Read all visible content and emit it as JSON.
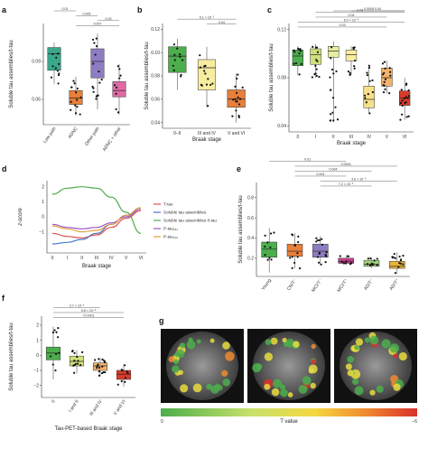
{
  "panel_labels": [
    "a",
    "b",
    "c",
    "d",
    "e",
    "f",
    "g"
  ],
  "colors": {
    "teal": "#3aa88a",
    "orange": "#e87f3a",
    "purple": "#8e7cc3",
    "pink": "#e06aa8",
    "green": "#4cae4c",
    "yellowgreen": "#cfe07a",
    "lightyellow": "#f7eda0",
    "paleorange": "#f3b36a",
    "red": "#d93a2b",
    "deeppink": "#cf3d8d",
    "gold": "#e9b53a",
    "lightgreen": "#9dd27a"
  },
  "chart_data": [
    {
      "panel": "a",
      "type": "box",
      "ylabel": "Soluble tau assemblies/t-tau",
      "ylim": [
        0.04,
        0.12
      ],
      "yticks": [
        "0.06",
        "0.09"
      ],
      "categories": [
        "Low path",
        "ADNC",
        "Other path",
        "ADNC + other"
      ],
      "boxes": [
        {
          "q1": 0.083,
          "med": 0.096,
          "q3": 0.101,
          "min": 0.072,
          "max": 0.105,
          "color": "#3aa88a"
        },
        {
          "q1": 0.056,
          "med": 0.061,
          "q3": 0.067,
          "min": 0.047,
          "max": 0.078,
          "color": "#e87f3a"
        },
        {
          "q1": 0.077,
          "med": 0.09,
          "q3": 0.1,
          "min": 0.052,
          "max": 0.112,
          "color": "#8e7cc3"
        },
        {
          "q1": 0.062,
          "med": 0.067,
          "q3": 0.074,
          "min": 0.048,
          "max": 0.088,
          "color": "#e06aa8"
        }
      ],
      "pvalues": [
        {
          "text": "0.01",
          "from": 0,
          "to": 1
        },
        {
          "text": "0.005",
          "from": 1,
          "to": 2
        },
        {
          "text": "0.03",
          "from": 2,
          "to": 3
        },
        {
          "text": "0.007",
          "from": 1,
          "to": 3
        }
      ]
    },
    {
      "panel": "b",
      "type": "box",
      "ylabel": "Soluble tau assemblies/t-tau",
      "xlabel": "Braak stage",
      "ylim": [
        0.035,
        0.125
      ],
      "yticks": [
        "0.04",
        "0.06",
        "0.08",
        "0.10",
        "0.12"
      ],
      "categories": [
        "0–II",
        "III and IV",
        "V and VI"
      ],
      "boxes": [
        {
          "q1": 0.083,
          "med": 0.097,
          "q3": 0.105,
          "min": 0.068,
          "max": 0.112,
          "color": "#4cae4c"
        },
        {
          "q1": 0.068,
          "med": 0.087,
          "q3": 0.094,
          "min": 0.053,
          "max": 0.105,
          "color": "#f7eda0"
        },
        {
          "q1": 0.053,
          "med": 0.06,
          "q3": 0.068,
          "min": 0.04,
          "max": 0.082,
          "color": "#e87f3a"
        }
      ],
      "pvalues": [
        {
          "text": "5.1 × 10⁻⁵",
          "from": 0,
          "to": 2
        },
        {
          "text": "0.04",
          "from": 1,
          "to": 2
        }
      ]
    },
    {
      "panel": "c",
      "type": "box",
      "ylabel": "Soluble tau assemblies/t-tau",
      "xlabel": "Braak stage",
      "ylim": [
        0.035,
        0.125
      ],
      "yticks": [
        "0.04",
        "0.08",
        "0.12"
      ],
      "categories": [
        "0",
        "I",
        "II",
        "III",
        "IV",
        "V",
        "VI"
      ],
      "boxes": [
        {
          "q1": 0.09,
          "med": 0.098,
          "q3": 0.103,
          "min": 0.082,
          "max": 0.106,
          "color": "#4cae4c"
        },
        {
          "q1": 0.091,
          "med": 0.099,
          "q3": 0.104,
          "min": 0.08,
          "max": 0.108,
          "color": "#cfe07a"
        },
        {
          "q1": 0.097,
          "med": 0.102,
          "q3": 0.106,
          "min": 0.043,
          "max": 0.11,
          "color": "#e6eea0"
        },
        {
          "q1": 0.094,
          "med": 0.099,
          "q3": 0.103,
          "min": 0.082,
          "max": 0.106,
          "color": "#f7eda0"
        },
        {
          "q1": 0.055,
          "med": 0.062,
          "q3": 0.073,
          "min": 0.05,
          "max": 0.09,
          "color": "#f7e08a"
        },
        {
          "q1": 0.073,
          "med": 0.08,
          "q3": 0.088,
          "min": 0.067,
          "max": 0.094,
          "color": "#f3b36a"
        },
        {
          "q1": 0.057,
          "med": 0.063,
          "q3": 0.069,
          "min": 0.045,
          "max": 0.08,
          "color": "#d93a2b"
        }
      ],
      "pvalues": [
        {
          "text": "0.04",
          "from": 3,
          "to": 6
        },
        {
          "text": "0.0005",
          "from": 2,
          "to": 6
        },
        {
          "text": "0.04",
          "from": 1,
          "to": 6
        },
        {
          "text": "0.04",
          "from": 1,
          "to": 5
        },
        {
          "text": "6.0 × 10⁻⁵",
          "from": 0,
          "to": 6
        },
        {
          "text": "0.03",
          "from": 0,
          "to": 5
        }
      ]
    },
    {
      "panel": "d",
      "type": "line",
      "xlabel": "Braak stage",
      "ylabel": "z-score",
      "ylim": [
        -1.2,
        1.2
      ],
      "yticks": [
        "2",
        "1",
        "0",
        "−1"
      ],
      "categories": [
        "0",
        "I",
        "II",
        "III",
        "IV",
        "V",
        "VI"
      ],
      "series": [
        {
          "name": "T-tau",
          "color": "#e05050",
          "values": [
            -0.55,
            -0.65,
            -0.7,
            -0.6,
            -0.35,
            -0.05,
            0.2
          ]
        },
        {
          "name": "Soluble tau assemblies",
          "color": "#4477cc",
          "values": [
            -0.9,
            -0.85,
            -0.75,
            -0.55,
            -0.25,
            0.05,
            0.3
          ]
        },
        {
          "name": "Soluble tau assemblies /t-tau",
          "color": "#4cae4c",
          "values": [
            0.75,
            0.95,
            1.0,
            0.95,
            0.65,
            0.15,
            -0.55
          ]
        },
        {
          "name": "P-tau₁₈₁",
          "color": "#9a57c9",
          "values": [
            -0.25,
            -0.35,
            -0.4,
            -0.35,
            -0.2,
            0.0,
            0.25
          ]
        },
        {
          "name": "P-tau₂₃₁",
          "color": "#e0a040",
          "values": [
            -0.3,
            -0.4,
            -0.5,
            -0.45,
            -0.25,
            0.05,
            0.3
          ]
        }
      ]
    },
    {
      "panel": "e",
      "type": "box",
      "ylabel": "Soluble tau assemblies/t-tau",
      "ylim": [
        0.02,
        0.95
      ],
      "yticks": [
        "0.2",
        "0.4",
        "0.6",
        "0.8"
      ],
      "categories": [
        "Young",
        "CN/T⁻",
        "MCI/T⁻",
        "MCI/T⁺",
        "AD/T⁻",
        "AD/T⁺"
      ],
      "boxes": [
        {
          "q1": 0.21,
          "med": 0.29,
          "q3": 0.36,
          "min": 0.06,
          "max": 0.5,
          "color": "#4cae4c"
        },
        {
          "q1": 0.22,
          "med": 0.27,
          "q3": 0.34,
          "min": 0.1,
          "max": 0.45,
          "color": "#e87f3a"
        },
        {
          "q1": 0.21,
          "med": 0.27,
          "q3": 0.34,
          "min": 0.13,
          "max": 0.42,
          "color": "#8e7cc3"
        },
        {
          "q1": 0.15,
          "med": 0.17,
          "q3": 0.2,
          "min": 0.13,
          "max": 0.23,
          "color": "#cf3d8d"
        },
        {
          "q1": 0.12,
          "med": 0.14,
          "q3": 0.18,
          "min": 0.1,
          "max": 0.2,
          "color": "#9dd27a"
        },
        {
          "q1": 0.1,
          "med": 0.12,
          "q3": 0.17,
          "min": 0.05,
          "max": 0.26,
          "color": "#e9b53a"
        }
      ],
      "pvalues": [
        {
          "text": "0.01",
          "from": 0,
          "to": 3
        },
        {
          "text": "0.0004",
          "from": 1,
          "to": 5
        },
        {
          "text": "0.004",
          "from": 1,
          "to": 4
        },
        {
          "text": "0.004",
          "from": 1,
          "to": 3
        },
        {
          "text": "3.6 × 10⁻⁵",
          "from": 2,
          "to": 5
        },
        {
          "text": "7.2 × 10⁻⁵",
          "from": 2,
          "to": 4
        }
      ]
    },
    {
      "panel": "f",
      "type": "box",
      "ylabel": "Soluble tau assemblies/t-tau",
      "xlabel": "Tau-PET-based Braak stage",
      "ylim": [
        -2.8,
        2.6
      ],
      "yticks": [
        "2",
        "1",
        "0",
        "−1",
        "−2"
      ],
      "categories": [
        "0",
        "I and II",
        "III and IV",
        "V and VI"
      ],
      "boxes": [
        {
          "q1": -0.3,
          "med": 0.15,
          "q3": 0.55,
          "min": -1.6,
          "max": 1.9,
          "color": "#4cae4c"
        },
        {
          "q1": -0.7,
          "med": -0.4,
          "q3": -0.05,
          "min": -1.2,
          "max": 0.35,
          "color": "#cfe07a"
        },
        {
          "q1": -1.0,
          "med": -0.7,
          "q3": -0.5,
          "min": -1.4,
          "max": -0.2,
          "color": "#f3b36a"
        },
        {
          "q1": -1.6,
          "med": -1.25,
          "q3": -1.0,
          "min": -2.1,
          "max": -0.6,
          "color": "#d93a2b"
        }
      ],
      "pvalues": [
        {
          "text": "3.7 × 10⁻⁶",
          "from": 0,
          "to": 2
        },
        {
          "text": "5.8 × 10⁻⁵",
          "from": 0,
          "to": 3
        },
        {
          "text": "<0.0001",
          "from": 0,
          "to": 3
        }
      ]
    },
    {
      "panel": "g",
      "type": "heatmap",
      "colorbar": {
        "min_label": "0",
        "max_label": "−6",
        "title": "T value"
      }
    }
  ]
}
